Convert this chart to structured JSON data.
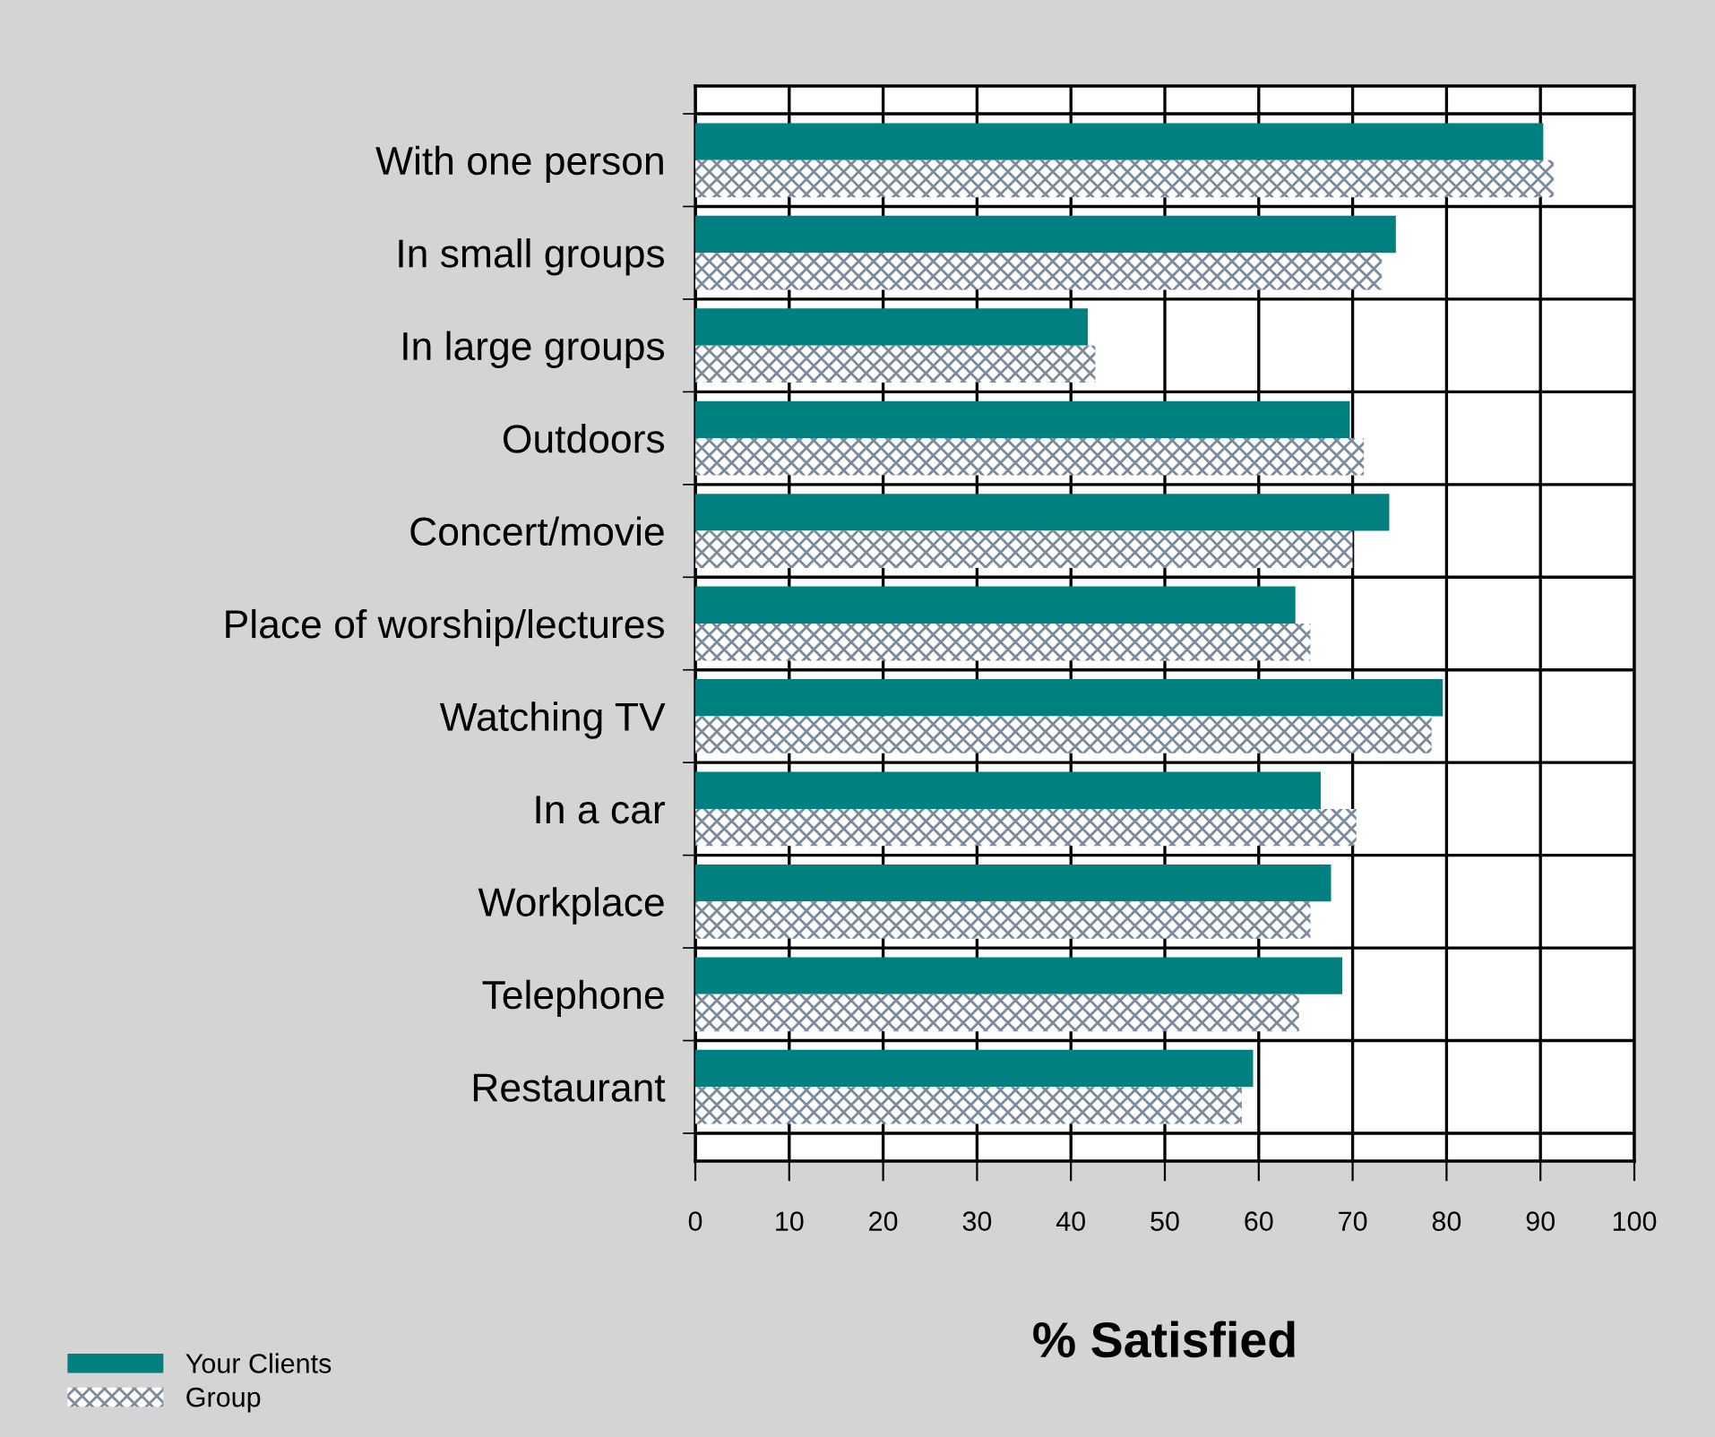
{
  "chart_data": {
    "type": "bar",
    "orientation": "horizontal",
    "xlabel": "% Satisfied",
    "categories": [
      "With one person",
      "In small groups",
      "In large groups",
      "Outdoors",
      "Concert/movie",
      "Place of worship/lectures",
      "Watching TV",
      "In a car",
      "Workplace",
      "Telephone",
      "Restaurant"
    ],
    "series": [
      {
        "name": "Your Clients",
        "color": "#008080",
        "values": [
          90.3,
          74.6,
          41.8,
          69.7,
          73.9,
          63.9,
          79.6,
          66.6,
          67.7,
          68.9,
          59.4
        ]
      },
      {
        "name": "Group",
        "color": "#7b8a9c",
        "values": [
          91.4,
          73.1,
          42.6,
          71.2,
          70.0,
          65.5,
          78.4,
          70.4,
          65.5,
          64.3,
          58.2
        ]
      }
    ],
    "xlim": [
      0,
      100
    ],
    "xticks": [
      0,
      10,
      20,
      30,
      40,
      50,
      60,
      70,
      80,
      90,
      100
    ],
    "grid": true,
    "legend": "bottom left"
  }
}
